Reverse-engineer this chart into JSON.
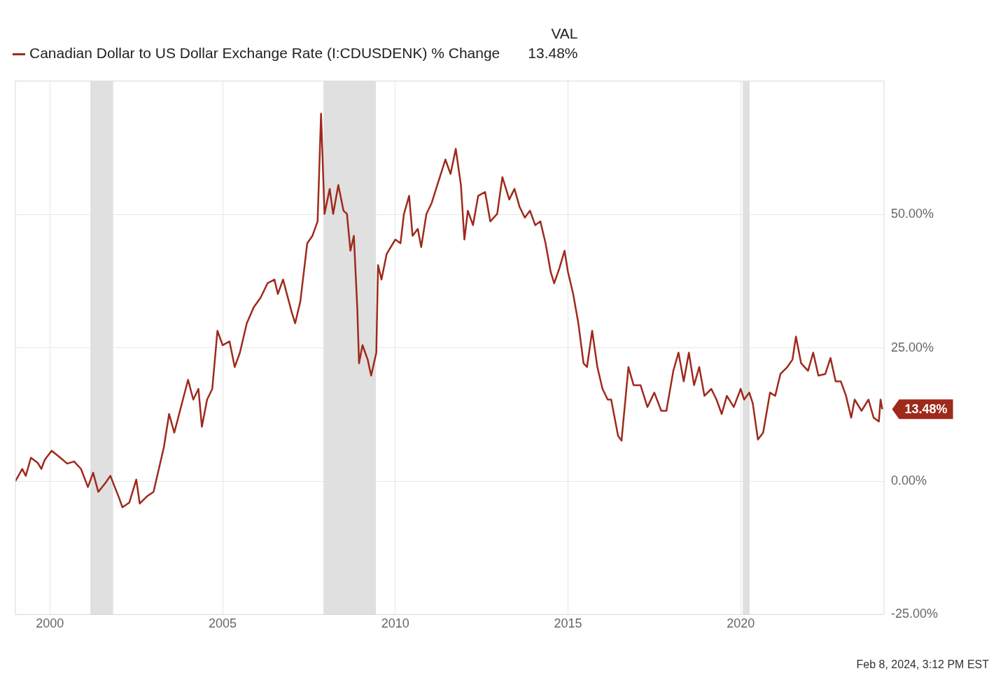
{
  "chart_data": {
    "type": "line",
    "legend": "top left",
    "legend_title": "VAL",
    "grid": true,
    "marker": "none",
    "line_style": "solid",
    "xlim": [
      1999,
      2024.15
    ],
    "xticks": [
      2000,
      2005,
      2010,
      2015,
      2020
    ],
    "ylim": [
      -25,
      75
    ],
    "yticks": [
      {
        "value": -25,
        "label": "-25.00%"
      },
      {
        "value": 0,
        "label": "0.00%"
      },
      {
        "value": 25,
        "label": "25.00%"
      },
      {
        "value": 50,
        "label": "50.00%"
      }
    ],
    "bands": [
      {
        "axis": "x",
        "from": 2001.17,
        "to": 2001.83,
        "color": "#e0e0e0"
      },
      {
        "axis": "x",
        "from": 2007.92,
        "to": 2009.44,
        "color": "#e0e0e0"
      },
      {
        "axis": "x",
        "from": 2020.06,
        "to": 2020.26,
        "color": "#e0e0e0"
      }
    ],
    "annotations": [
      "13.48%",
      {
        "text": "13.48%",
        "x": 2024.1,
        "y": 13.48
      },
      "Feb 8, 2024, 3:12 PM EST"
    ],
    "series": [
      {
        "name": "Canadian Dollar to US Dollar Exchange Rate (I:CDUSDENK) % Change",
        "color": "#9e2a1c",
        "x": [
          1999.0,
          1999.2,
          1999.3,
          1999.45,
          1999.65,
          1999.75,
          1999.85,
          2000.05,
          2000.3,
          2000.5,
          2000.7,
          2000.9,
          2001.1,
          2001.25,
          2001.4,
          2001.6,
          2001.75,
          2002.0,
          2002.1,
          2002.3,
          2002.5,
          2002.6,
          2002.8,
          2003.0,
          2003.3,
          2003.45,
          2003.6,
          2003.85,
          2004.0,
          2004.15,
          2004.3,
          2004.4,
          2004.55,
          2004.7,
          2004.85,
          2005.0,
          2005.2,
          2005.35,
          2005.5,
          2005.7,
          2005.9,
          2006.1,
          2006.3,
          2006.5,
          2006.6,
          2006.75,
          2007.0,
          2007.1,
          2007.25,
          2007.45,
          2007.6,
          2007.75,
          2007.85,
          2007.95,
          2008.1,
          2008.2,
          2008.35,
          2008.5,
          2008.6,
          2008.7,
          2008.8,
          2008.9,
          2008.95,
          2009.05,
          2009.2,
          2009.3,
          2009.45,
          2009.5,
          2009.6,
          2009.75,
          2010.0,
          2010.15,
          2010.25,
          2010.4,
          2010.5,
          2010.65,
          2010.75,
          2010.9,
          2011.05,
          2011.25,
          2011.45,
          2011.6,
          2011.75,
          2011.9,
          2012.0,
          2012.1,
          2012.25,
          2012.4,
          2012.6,
          2012.75,
          2012.95,
          2013.1,
          2013.3,
          2013.45,
          2013.6,
          2013.75,
          2013.9,
          2014.05,
          2014.2,
          2014.35,
          2014.5,
          2014.6,
          2014.75,
          2014.9,
          2015.0,
          2015.15,
          2015.3,
          2015.45,
          2015.55,
          2015.7,
          2015.85,
          2016.0,
          2016.15,
          2016.25,
          2016.45,
          2016.55,
          2016.75,
          2016.9,
          2017.1,
          2017.3,
          2017.5,
          2017.7,
          2017.85,
          2018.05,
          2018.2,
          2018.35,
          2018.5,
          2018.65,
          2018.8,
          2018.95,
          2019.15,
          2019.3,
          2019.45,
          2019.6,
          2019.8,
          2020.0,
          2020.1,
          2020.25,
          2020.35,
          2020.5,
          2020.65,
          2020.85,
          2021.0,
          2021.15,
          2021.35,
          2021.5,
          2021.6,
          2021.75,
          2021.95,
          2022.1,
          2022.25,
          2022.45,
          2022.6,
          2022.75,
          2022.9,
          2023.05,
          2023.2,
          2023.3,
          2023.5,
          2023.7,
          2023.85,
          2024.0,
          2024.05,
          2024.1
        ],
        "values": [
          0,
          2.3,
          1,
          4.4,
          3.4,
          2.3,
          4,
          5.7,
          4.4,
          3.3,
          3.7,
          2.3,
          -1.1,
          1.6,
          -2,
          -0.4,
          1,
          -3.1,
          -4.9,
          -4,
          0.3,
          -4.2,
          -2.9,
          -2,
          6.4,
          12.6,
          9.1,
          15.3,
          19,
          15.3,
          17.3,
          10.2,
          15.3,
          17.3,
          28.2,
          25.5,
          26.2,
          21.4,
          24.1,
          29.6,
          32.6,
          34.4,
          37.1,
          37.8,
          35.1,
          37.8,
          31.7,
          29.6,
          33.7,
          44.6,
          46,
          48.7,
          68.9,
          50.1,
          54.8,
          50.1,
          55.5,
          50.7,
          50.1,
          43.2,
          46,
          32.3,
          22.1,
          25.5,
          22.8,
          19.8,
          24.1,
          40.5,
          37.8,
          42.6,
          45.3,
          44.6,
          50.1,
          53.5,
          46,
          47.3,
          43.9,
          50.1,
          52.1,
          56.2,
          60.3,
          57.6,
          62.3,
          55.5,
          45.3,
          50.7,
          48,
          53.5,
          54.2,
          48.7,
          50.1,
          57,
          52.8,
          54.8,
          51.4,
          49.4,
          50.7,
          48,
          48.7,
          44.6,
          39.2,
          37.1,
          39.9,
          43.2,
          39.2,
          35.1,
          29.6,
          22.1,
          21.4,
          28.2,
          21.4,
          17.3,
          15.3,
          15.3,
          8.5,
          7.6,
          21.4,
          18,
          18,
          13.9,
          16.6,
          13.2,
          13.2,
          20.7,
          24.1,
          18.7,
          24.1,
          18,
          21.4,
          16,
          17.3,
          15.3,
          12.6,
          16,
          13.9,
          17.3,
          15.3,
          16.6,
          14.6,
          7.8,
          9.1,
          16.6,
          16,
          20.1,
          21.4,
          22.8,
          27.1,
          22.1,
          20.7,
          24.1,
          19.8,
          20.1,
          23.1,
          18.7,
          18.7,
          16,
          11.9,
          15.3,
          13.2,
          15.3,
          11.9,
          11.2,
          15.3,
          13.48
        ]
      }
    ]
  }
}
